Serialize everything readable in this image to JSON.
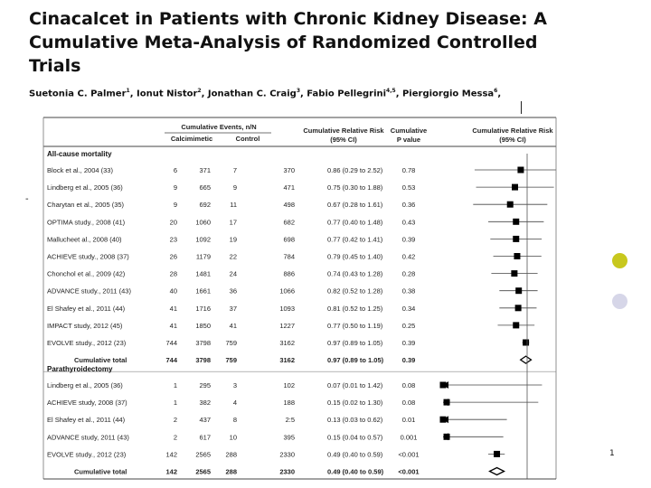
{
  "title_lines": [
    "Cinacalcet in Patients with Chronic Kidney Disease: A",
    "Cumulative Meta-Analysis of Randomized Controlled",
    "Trials"
  ],
  "authors": [
    {
      "name": "Suetonia C. Palmer",
      "sup": "1",
      "sep": ", "
    },
    {
      "name": "Ionut Nistor",
      "sup": "2",
      "sep": ", "
    },
    {
      "name": "Jonathan C. Craig",
      "sup": "3",
      "sep": ", "
    },
    {
      "name": "Fabio Pellegrini",
      "sup": "4,5",
      "sep": ", "
    },
    {
      "name": "Piergiorgio Messa",
      "sup": "6",
      "sep": ","
    }
  ],
  "page_number": "1",
  "stray_mark": "-",
  "colors": {
    "accent_yellow": "#c8c81e",
    "accent_lavender": "#d6d6e8"
  },
  "chart_data": {
    "type": "forest",
    "headers": {
      "events_group": "Cumulative Events, n/N",
      "calcimimetic": "Calcimimetic",
      "control": "Control",
      "rr": [
        "Cumulative Relative Risk",
        "(95% CI)"
      ],
      "pval": [
        "Cumulative",
        "P value"
      ],
      "plot": [
        "Cumulative Relative Risk",
        "(95% CI)"
      ]
    },
    "x_scale": "log",
    "sections": [
      {
        "name": "All-cause mortality",
        "rows": [
          {
            "study": "Block et al., 2004 (33)",
            "e1": "6",
            "n1": "371",
            "e2": "7",
            "n2": "370",
            "rr_text": "0.86 (0.29 to 2.52)",
            "p": "0.78",
            "rr": 0.86,
            "lo": 0.29,
            "hi": 2.52
          },
          {
            "study": "Lindberg et al., 2005 (36)",
            "e1": "9",
            "n1": "665",
            "e2": "9",
            "n2": "471",
            "rr_text": "0.75 (0.30 to 1.88)",
            "p": "0.53",
            "rr": 0.75,
            "lo": 0.3,
            "hi": 1.88
          },
          {
            "study": "Charytan et al., 2005 (35)",
            "e1": "9",
            "n1": "692",
            "e2": "11",
            "n2": "498",
            "rr_text": "0.67 (0.28 to 1.61)",
            "p": "0.36",
            "rr": 0.67,
            "lo": 0.28,
            "hi": 1.61
          },
          {
            "study": "OPTIMA study., 2008 (41)",
            "e1": "20",
            "n1": "1060",
            "e2": "17",
            "n2": "682",
            "rr_text": "0.77 (0.40 to 1.48)",
            "p": "0.43",
            "rr": 0.77,
            "lo": 0.4,
            "hi": 1.48
          },
          {
            "study": "Mallucheet al., 2008 (40)",
            "e1": "23",
            "n1": "1092",
            "e2": "19",
            "n2": "698",
            "rr_text": "0.77 (0.42 to 1.41)",
            "p": "0.39",
            "rr": 0.77,
            "lo": 0.42,
            "hi": 1.41
          },
          {
            "study": "ACHIEVE study., 2008 (37)",
            "e1": "26",
            "n1": "1179",
            "e2": "22",
            "n2": "784",
            "rr_text": "0.79 (0.45 to 1.40)",
            "p": "0.42",
            "rr": 0.79,
            "lo": 0.45,
            "hi": 1.4
          },
          {
            "study": "Chonchol et al., 2009 (42)",
            "e1": "28",
            "n1": "1481",
            "e2": "24",
            "n2": "886",
            "rr_text": "0.74 (0.43 to 1.28)",
            "p": "0.28",
            "rr": 0.74,
            "lo": 0.43,
            "hi": 1.28
          },
          {
            "study": "ADVANCE study., 2011 (43)",
            "e1": "40",
            "n1": "1661",
            "e2": "36",
            "n2": "1066",
            "rr_text": "0.82 (0.52 to 1.28)",
            "p": "0.38",
            "rr": 0.82,
            "lo": 0.52,
            "hi": 1.28
          },
          {
            "study": "El Shafey et al., 2011 (44)",
            "e1": "41",
            "n1": "1716",
            "e2": "37",
            "n2": "1093",
            "rr_text": "0.81 (0.52 to 1.25)",
            "p": "0.34",
            "rr": 0.81,
            "lo": 0.52,
            "hi": 1.25
          },
          {
            "study": "IMPACT study, 2012 (45)",
            "e1": "41",
            "n1": "1850",
            "e2": "41",
            "n2": "1227",
            "rr_text": "0.77 (0.50 to 1.19)",
            "p": "0.25",
            "rr": 0.77,
            "lo": 0.5,
            "hi": 1.19
          },
          {
            "study": "EVOLVE study., 2012 (23)",
            "e1": "744",
            "n1": "3798",
            "e2": "759",
            "n2": "3162",
            "rr_text": "0.97 (0.89 to 1.05)",
            "p": "0.39",
            "rr": 0.97,
            "lo": 0.89,
            "hi": 1.05
          }
        ],
        "total": {
          "study": "Cumulative total",
          "e1": "744",
          "n1": "3798",
          "e2": "759",
          "n2": "3162",
          "rr_text": "0.97 (0.89 to 1.05)",
          "p": "0.39",
          "rr": 0.97,
          "lo": 0.89,
          "hi": 1.05
        }
      },
      {
        "name": "Parathyroidectomy",
        "rows": [
          {
            "study": "Lindberg et al., 2005 (36)",
            "e1": "1",
            "n1": "295",
            "e2": "3",
            "n2": "102",
            "rr_text": "0.07 (0.01 to 1.42)",
            "p": "0.08",
            "rr": 0.07,
            "lo": 0.01,
            "hi": 1.42
          },
          {
            "study": "ACHIEVE study, 2008 (37)",
            "e1": "1",
            "n1": "382",
            "e2": "4",
            "n2": "188",
            "rr_text": "0.15 (0.02 to 1.30)",
            "p": "0.08",
            "rr": 0.15,
            "lo": 0.02,
            "hi": 1.3
          },
          {
            "study": "El Shafey et al., 2011 (44)",
            "e1": "2",
            "n1": "437",
            "e2": "8",
            "n2": "2:5",
            "rr_text": "0.13 (0.03 to 0.62)",
            "p": "0.01",
            "rr": 0.13,
            "lo": 0.03,
            "hi": 0.62
          },
          {
            "study": "ADVANCE study, 2011 (43)",
            "e1": "2",
            "n1": "617",
            "e2": "10",
            "n2": "395",
            "rr_text": "0.15 (0.04 to 0.57)",
            "p": "0.001",
            "rr": 0.15,
            "lo": 0.04,
            "hi": 0.57
          },
          {
            "study": "EVOLVE study., 2012 (23)",
            "e1": "142",
            "n1": "2565",
            "e2": "288",
            "n2": "2330",
            "rr_text": "0.49 (0.40 to 0.59)",
            "p": "<0.001",
            "rr": 0.49,
            "lo": 0.4,
            "hi": 0.59
          }
        ],
        "total": {
          "study": "Cumulative total",
          "e1": "142",
          "n1": "2565",
          "e2": "288",
          "n2": "2330",
          "rr_text": "0.49 (0.40 to 0.59)",
          "p": "<0.001",
          "rr": 0.49,
          "lo": 0.4,
          "hi": 0.59
        }
      }
    ]
  }
}
